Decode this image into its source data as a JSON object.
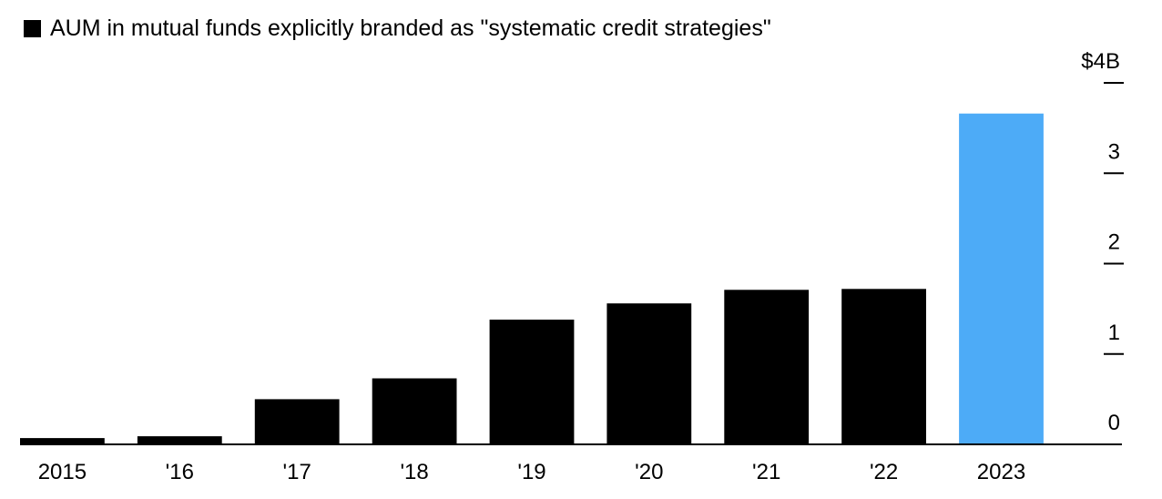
{
  "colors": {
    "bar": "#000000",
    "highlight": "#4DABF7",
    "axis": "#000000",
    "text": "#000000"
  },
  "legend": {
    "label": "AUM in mutual funds explicitly branded as \"systematic credit strategies\""
  },
  "chart_data": {
    "type": "bar",
    "categories": [
      "2015",
      "'16",
      "'17",
      "'18",
      "'19",
      "'20",
      "'21",
      "'22",
      "2023"
    ],
    "values": [
      0.07,
      0.09,
      0.5,
      0.73,
      1.38,
      1.56,
      1.71,
      1.72,
      3.66
    ],
    "highlight_index": 8,
    "ylim": [
      0,
      4
    ],
    "y_ticks": [
      0,
      1,
      2,
      3,
      4
    ],
    "y_tick_labels": [
      "0",
      "1",
      "2",
      "3",
      "$4B"
    ],
    "y_axis_side": "right",
    "series": [
      {
        "name": "AUM in mutual funds explicitly branded as \"systematic credit strategies\"",
        "values": [
          0.07,
          0.09,
          0.5,
          0.73,
          1.38,
          1.56,
          1.71,
          1.72,
          3.66
        ]
      }
    ],
    "title": "",
    "xlabel": "",
    "ylabel": "",
    "grid": false,
    "legend_position": "top-left"
  }
}
